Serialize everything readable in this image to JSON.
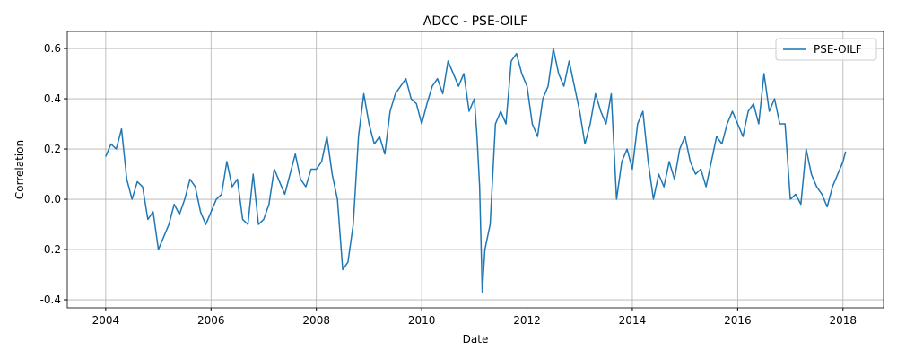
{
  "chart_data": {
    "type": "line",
    "title": "ADCC - PSE-OILF",
    "x_label": "Date",
    "y_label": "Correlation",
    "x": [
      2004.0,
      2004.1,
      2004.2,
      2004.3,
      2004.4,
      2004.5,
      2004.6,
      2004.7,
      2004.8,
      2004.9,
      2005.0,
      2005.1,
      2005.2,
      2005.3,
      2005.4,
      2005.5,
      2005.6,
      2005.7,
      2005.8,
      2005.9,
      2006.0,
      2006.1,
      2006.2,
      2006.3,
      2006.4,
      2006.5,
      2006.6,
      2006.7,
      2006.8,
      2006.9,
      2007.0,
      2007.1,
      2007.2,
      2007.3,
      2007.4,
      2007.5,
      2007.6,
      2007.7,
      2007.8,
      2007.9,
      2008.0,
      2008.1,
      2008.2,
      2008.3,
      2008.4,
      2008.5,
      2008.6,
      2008.7,
      2008.8,
      2008.9,
      2009.0,
      2009.1,
      2009.2,
      2009.3,
      2009.4,
      2009.5,
      2009.6,
      2009.7,
      2009.8,
      2009.9,
      2010.0,
      2010.1,
      2010.2,
      2010.3,
      2010.4,
      2010.5,
      2010.6,
      2010.7,
      2010.8,
      2010.9,
      2011.0,
      2011.05,
      2011.1,
      2011.15,
      2011.2,
      2011.3,
      2011.4,
      2011.5,
      2011.6,
      2011.7,
      2011.8,
      2011.9,
      2012.0,
      2012.1,
      2012.2,
      2012.3,
      2012.4,
      2012.5,
      2012.6,
      2012.7,
      2012.8,
      2012.9,
      2013.0,
      2013.1,
      2013.2,
      2013.3,
      2013.4,
      2013.5,
      2013.6,
      2013.7,
      2013.8,
      2013.9,
      2014.0,
      2014.1,
      2014.2,
      2014.3,
      2014.4,
      2014.5,
      2014.6,
      2014.7,
      2014.8,
      2014.9,
      2015.0,
      2015.1,
      2015.2,
      2015.3,
      2015.4,
      2015.5,
      2015.6,
      2015.7,
      2015.8,
      2015.9,
      2016.0,
      2016.1,
      2016.2,
      2016.3,
      2016.4,
      2016.5,
      2016.6,
      2016.7,
      2016.8,
      2016.9,
      2017.0,
      2017.1,
      2017.2,
      2017.3,
      2017.4,
      2017.5,
      2017.6,
      2017.7,
      2017.8,
      2017.9,
      2018.0,
      2018.05
    ],
    "series": [
      {
        "name": "PSE-OILF",
        "color": "#1f77b4",
        "values": [
          0.17,
          0.22,
          0.2,
          0.28,
          0.08,
          0.0,
          0.07,
          0.05,
          -0.08,
          -0.05,
          -0.2,
          -0.15,
          -0.1,
          -0.02,
          -0.06,
          0.0,
          0.08,
          0.05,
          -0.05,
          -0.1,
          -0.05,
          0.0,
          0.02,
          0.15,
          0.05,
          0.08,
          -0.08,
          -0.1,
          0.1,
          -0.1,
          -0.08,
          -0.02,
          0.12,
          0.07,
          0.02,
          0.1,
          0.18,
          0.08,
          0.05,
          0.12,
          0.12,
          0.15,
          0.25,
          0.1,
          0.0,
          -0.28,
          -0.25,
          -0.1,
          0.25,
          0.42,
          0.3,
          0.22,
          0.25,
          0.18,
          0.35,
          0.42,
          0.45,
          0.48,
          0.4,
          0.38,
          0.3,
          0.38,
          0.45,
          0.48,
          0.42,
          0.55,
          0.5,
          0.45,
          0.5,
          0.35,
          0.4,
          0.25,
          0.05,
          -0.37,
          -0.2,
          -0.1,
          0.3,
          0.35,
          0.3,
          0.55,
          0.58,
          0.5,
          0.45,
          0.3,
          0.25,
          0.4,
          0.45,
          0.6,
          0.5,
          0.45,
          0.55,
          0.45,
          0.35,
          0.22,
          0.3,
          0.42,
          0.35,
          0.3,
          0.42,
          0.0,
          0.15,
          0.2,
          0.12,
          0.3,
          0.35,
          0.15,
          0.0,
          0.1,
          0.05,
          0.15,
          0.08,
          0.2,
          0.25,
          0.15,
          0.1,
          0.12,
          0.05,
          0.15,
          0.25,
          0.22,
          0.3,
          0.35,
          0.3,
          0.25,
          0.35,
          0.38,
          0.3,
          0.5,
          0.35,
          0.4,
          0.3,
          0.3,
          0.0,
          0.02,
          -0.02,
          0.2,
          0.1,
          0.05,
          0.02,
          -0.03,
          0.05,
          0.1,
          0.15,
          0.19
        ]
      }
    ],
    "xlim": [
      2003.27,
      2018.77
    ],
    "xticks": [
      2004,
      2006,
      2008,
      2010,
      2012,
      2014,
      2016,
      2018
    ],
    "ylim": [
      -0.432,
      0.668
    ],
    "yticks": [
      -0.4,
      -0.2,
      0.0,
      0.2,
      0.4,
      0.6
    ],
    "grid": true,
    "legend": "upper right"
  }
}
